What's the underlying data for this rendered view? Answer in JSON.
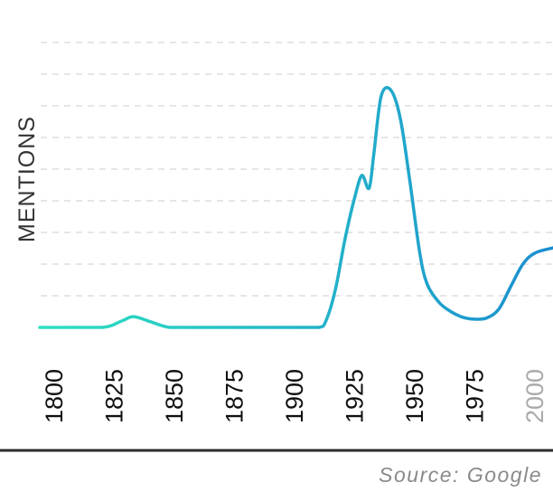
{
  "chart_data": {
    "type": "line",
    "title": "",
    "xlabel": "",
    "ylabel": "MENTIONS",
    "xlim": [
      1800,
      2000
    ],
    "x_ticks": [
      "1800",
      "1825",
      "1850",
      "1875",
      "1900",
      "1925",
      "1950",
      "1975",
      "2000"
    ],
    "grid": true,
    "legend": "none",
    "series": [
      {
        "x": [
          1800,
          1820,
          1828,
          1833,
          1840,
          1848,
          1860,
          1880,
          1900,
          1910,
          1913,
          1917,
          1921,
          1925,
          1928,
          1931,
          1933,
          1936,
          1940,
          1944,
          1948,
          1952,
          1955,
          1960,
          1965,
          1970,
          1975,
          1980,
          1985,
          1990,
          1995,
          2000
        ],
        "y": [
          0,
          0,
          2.0,
          3.4,
          1.8,
          0,
          0,
          0,
          0,
          0,
          2.0,
          12,
          28,
          41,
          48,
          44,
          55,
          73,
          75,
          66,
          46,
          24,
          14,
          8,
          5,
          3.2,
          2.6,
          3.0,
          5.8,
          13,
          20,
          23.5
        ],
        "color_start": "#2ee0c0",
        "color_end": "#1b8ed0"
      }
    ],
    "colors": {
      "tick_label": "#111111",
      "tick_label_faded": "#aaaaaa",
      "grid": "#dddddd",
      "baseline": "#2c2c2c"
    }
  },
  "source_text": "Source: Google"
}
